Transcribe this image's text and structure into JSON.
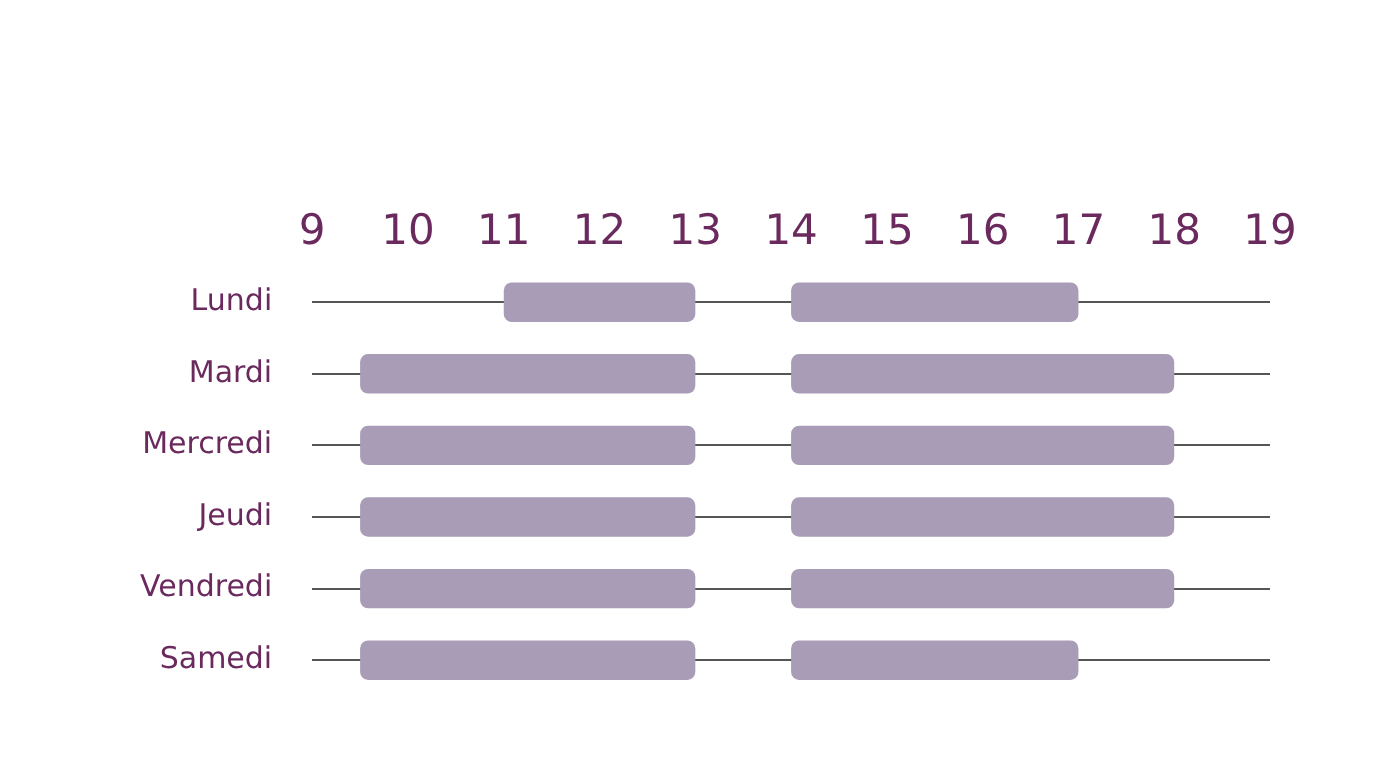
{
  "chart_data": {
    "type": "bar",
    "orientation": "horizontal",
    "categories": [
      "Lundi",
      "Mardi",
      "Mercredi",
      "Jeudi",
      "Vendredi",
      "Samedi"
    ],
    "series": [
      {
        "color": "#a99cb6",
        "base": [
          11,
          9.5,
          9.5,
          9.5,
          9.5,
          9.5
        ],
        "values": [
          2,
          3.5,
          3.5,
          3.5,
          3.5,
          3.5
        ]
      },
      {
        "color": "#a99cb6",
        "base": [
          14,
          14,
          14,
          14,
          14,
          14
        ],
        "values": [
          3,
          4,
          4,
          4,
          4,
          3
        ]
      }
    ],
    "xlim": [
      9,
      19
    ],
    "xticks": [
      9,
      10,
      11,
      12,
      13,
      14,
      15,
      16,
      17,
      18,
      19
    ],
    "grid": "y",
    "legend": false
  }
}
